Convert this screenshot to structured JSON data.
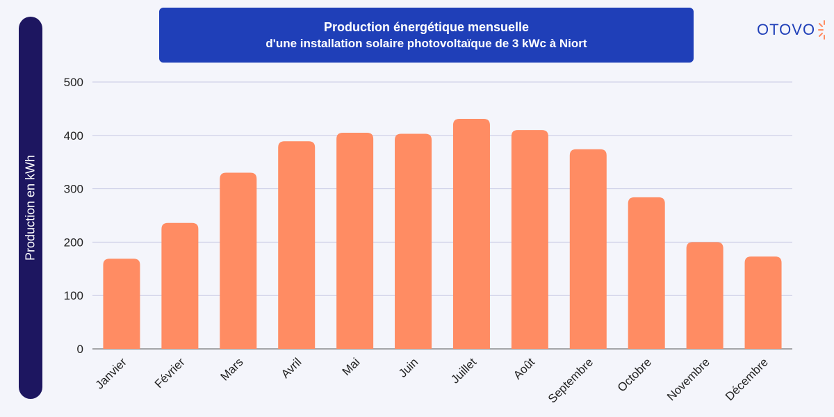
{
  "title": "Production énergétique mensuelle",
  "subtitle": "d'une installation solaire photovoltaïque de 3 kWc à Niort",
  "logo": "OTOVO",
  "colors": {
    "bar": "#ff8c63",
    "title_bg": "#1f3fb8",
    "ylabel_bg": "#1d1660",
    "grid": "#c7c9e3"
  },
  "chart_data": {
    "type": "bar",
    "title": "Production énergétique mensuelle",
    "subtitle": "d'une installation solaire photovoltaïque de 3 kWc à Niort",
    "xlabel": "",
    "ylabel": "Production en kWh",
    "categories": [
      "Janvier",
      "Février",
      "Mars",
      "Avril",
      "Mai",
      "Juin",
      "Juillet",
      "Août",
      "Septembre",
      "Octobre",
      "Novembre",
      "Décembre"
    ],
    "values": [
      169,
      236,
      330,
      389,
      405,
      403,
      431,
      410,
      374,
      284,
      200,
      173
    ],
    "ylim": [
      0,
      500
    ],
    "yticks": [
      0,
      100,
      200,
      300,
      400,
      500
    ],
    "grid": true,
    "legend": "none"
  }
}
